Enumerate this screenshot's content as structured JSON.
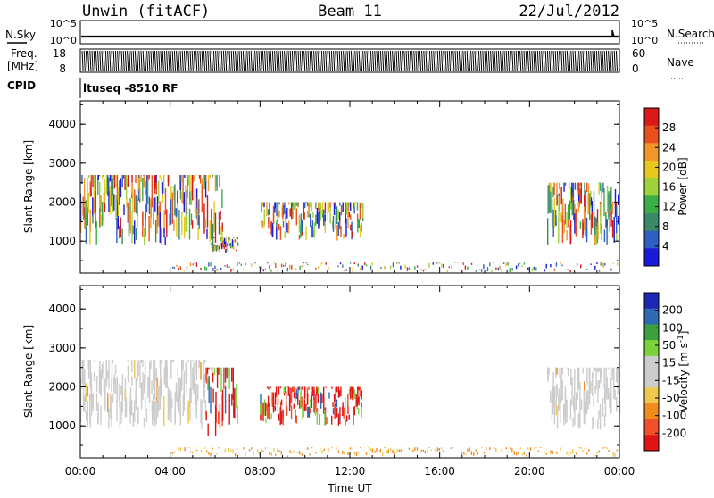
{
  "header": {
    "station": "Unwin (fitACF)",
    "beam": "Beam 11",
    "date": "22/Jul/2012"
  },
  "strips": {
    "nsky_label": "N.Sky",
    "nsearch_label": "N.Search",
    "nsky_ticks": [
      "10^5",
      "10^0"
    ],
    "nsearch_ticks": [
      "10^5",
      "10^0"
    ],
    "freq_label_1": "Freq.",
    "freq_label_2": "[MHz]",
    "freq_ticks": [
      "18",
      "8"
    ],
    "nave_label": "Nave",
    "nave_ticks": [
      "60",
      "0"
    ],
    "cpid_label": "CPID",
    "cpid_value": "ltuseq -8510 RF"
  },
  "colors": {
    "power": [
      "#1a1ad8",
      "#2f5fc4",
      "#3a8a6a",
      "#3cae48",
      "#9ed23c",
      "#e6c81e",
      "#f0962a",
      "#e8501e",
      "#d81a1a"
    ],
    "velocity": [
      "#e01414",
      "#f0502a",
      "#f08c1e",
      "#f0c850",
      "#cccccc",
      "#cccccc",
      "#7cd23c",
      "#3ca03c",
      "#2f6ab4",
      "#1e28b4"
    ]
  },
  "chart_data": [
    {
      "type": "heatmap",
      "name": "Power",
      "xlabel": "",
      "ylabel": "Slant Range [km]",
      "xlim": [
        0,
        24
      ],
      "ylim": [
        180,
        4600
      ],
      "yticks": [
        "4000",
        "3000",
        "2000",
        "1000"
      ],
      "colorbar_label": "Power [dB]",
      "colorbar_ticks": [
        "28",
        "24",
        "20",
        "16",
        "12",
        "8",
        "4"
      ],
      "echo_regions": [
        {
          "t_start": 0.0,
          "t_end": 6.3,
          "r_min": 900,
          "r_max": 2700,
          "mode": "power"
        },
        {
          "t_start": 5.8,
          "t_end": 7.0,
          "r_min": 700,
          "r_max": 1100,
          "mode": "power"
        },
        {
          "t_start": 8.0,
          "t_end": 12.6,
          "r_min": 1000,
          "r_max": 2000,
          "mode": "power"
        },
        {
          "t_start": 20.8,
          "t_end": 24.0,
          "r_min": 900,
          "r_max": 2500,
          "mode": "power"
        },
        {
          "t_start": 4.0,
          "t_end": 24.0,
          "r_min": 200,
          "r_max": 450,
          "mode": "power"
        }
      ]
    },
    {
      "type": "heatmap",
      "name": "Velocity",
      "xlabel": "Time UT",
      "ylabel": "Slant Range [km]",
      "xlim": [
        0,
        24
      ],
      "ylim": [
        180,
        4600
      ],
      "xticks": [
        "00:00",
        "04:00",
        "08:00",
        "12:00",
        "16:00",
        "20:00",
        "00:00"
      ],
      "yticks": [
        "4000",
        "3000",
        "2000",
        "1000"
      ],
      "colorbar_label": "Velocity [m s-1]",
      "colorbar_ticks": [
        "200",
        "100",
        "50",
        "15",
        "-15",
        "-50",
        "-100",
        "-200"
      ],
      "echo_regions": [
        {
          "t_start": 0.0,
          "t_end": 5.6,
          "r_min": 900,
          "r_max": 2700,
          "mode": "ground"
        },
        {
          "t_start": 5.6,
          "t_end": 7.0,
          "r_min": 700,
          "r_max": 2500,
          "mode": "red"
        },
        {
          "t_start": 8.0,
          "t_end": 12.6,
          "r_min": 1000,
          "r_max": 2000,
          "mode": "red"
        },
        {
          "t_start": 20.8,
          "t_end": 24.0,
          "r_min": 900,
          "r_max": 2500,
          "mode": "ground"
        },
        {
          "t_start": 4.0,
          "t_end": 24.0,
          "r_min": 200,
          "r_max": 450,
          "mode": "orange"
        }
      ]
    }
  ]
}
